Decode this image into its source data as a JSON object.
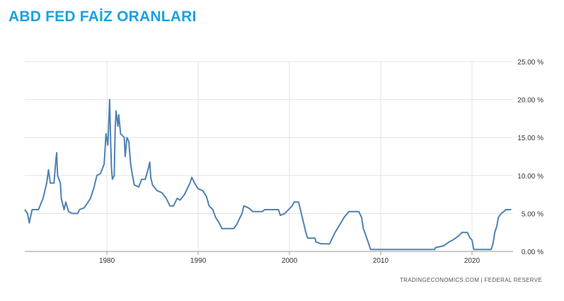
{
  "title": "ABD FED FAİZ ORANLARI",
  "source": "TRADINGECONOMICS.COM | FEDERAL RESERVE",
  "colors": {
    "title": "#1ba1e2",
    "line": "#4f81b4",
    "grid": "#e3e3e3",
    "axis": "#333333"
  },
  "chart_data": {
    "type": "line",
    "title": "ABD FED FAİZ ORANLARI",
    "xlabel": "",
    "ylabel": "",
    "x_ticks": [
      1980,
      1990,
      2000,
      2010,
      2020
    ],
    "y_ticks": [
      "0.00 %",
      "5.00 %",
      "10.00 %",
      "15.00 %",
      "20.00 %",
      "25.00 %"
    ],
    "xlim": [
      1971,
      2024.5
    ],
    "ylim": [
      0,
      25
    ],
    "grid": true,
    "y_axis_side": "right",
    "series": [
      {
        "values": [
          [
            1971.0,
            5.5
          ],
          [
            1971.3,
            5.0
          ],
          [
            1971.5,
            3.75
          ],
          [
            1971.8,
            5.5
          ],
          [
            1972.5,
            5.5
          ],
          [
            1973.0,
            7.0
          ],
          [
            1973.4,
            9.0
          ],
          [
            1973.6,
            10.75
          ],
          [
            1973.8,
            9.0
          ],
          [
            1974.2,
            9.0
          ],
          [
            1974.4,
            12.0
          ],
          [
            1974.5,
            13.0
          ],
          [
            1974.6,
            10.0
          ],
          [
            1974.9,
            9.0
          ],
          [
            1975.0,
            7.0
          ],
          [
            1975.3,
            5.5
          ],
          [
            1975.5,
            6.5
          ],
          [
            1975.8,
            5.25
          ],
          [
            1976.2,
            5.0
          ],
          [
            1976.8,
            5.0
          ],
          [
            1977.0,
            5.5
          ],
          [
            1977.5,
            5.75
          ],
          [
            1977.8,
            6.25
          ],
          [
            1978.2,
            7.0
          ],
          [
            1978.6,
            8.5
          ],
          [
            1978.9,
            10.0
          ],
          [
            1979.3,
            10.25
          ],
          [
            1979.7,
            11.5
          ],
          [
            1979.9,
            15.5
          ],
          [
            1980.1,
            14.0
          ],
          [
            1980.3,
            20.0
          ],
          [
            1980.4,
            15.0
          ],
          [
            1980.5,
            11.0
          ],
          [
            1980.6,
            9.5
          ],
          [
            1980.8,
            10.0
          ],
          [
            1980.9,
            16.0
          ],
          [
            1981.0,
            18.5
          ],
          [
            1981.2,
            16.5
          ],
          [
            1981.3,
            18.0
          ],
          [
            1981.5,
            15.5
          ],
          [
            1981.9,
            15.0
          ],
          [
            1982.0,
            12.5
          ],
          [
            1982.2,
            15.0
          ],
          [
            1982.4,
            14.5
          ],
          [
            1982.6,
            11.5
          ],
          [
            1982.8,
            10.0
          ],
          [
            1983.0,
            8.75
          ],
          [
            1983.5,
            8.5
          ],
          [
            1983.8,
            9.5
          ],
          [
            1984.2,
            9.5
          ],
          [
            1984.5,
            10.75
          ],
          [
            1984.7,
            11.75
          ],
          [
            1984.8,
            9.75
          ],
          [
            1985.0,
            8.75
          ],
          [
            1985.5,
            8.0
          ],
          [
            1986.0,
            7.75
          ],
          [
            1986.5,
            7.0
          ],
          [
            1986.9,
            6.0
          ],
          [
            1987.3,
            6.0
          ],
          [
            1987.7,
            7.0
          ],
          [
            1988.0,
            6.75
          ],
          [
            1988.5,
            7.5
          ],
          [
            1988.8,
            8.25
          ],
          [
            1989.1,
            9.0
          ],
          [
            1989.3,
            9.75
          ],
          [
            1989.6,
            9.0
          ],
          [
            1990.0,
            8.25
          ],
          [
            1990.5,
            8.0
          ],
          [
            1990.9,
            7.25
          ],
          [
            1991.2,
            6.0
          ],
          [
            1991.6,
            5.5
          ],
          [
            1991.9,
            4.5
          ],
          [
            1992.3,
            3.75
          ],
          [
            1992.6,
            3.0
          ],
          [
            1993.0,
            3.0
          ],
          [
            1993.9,
            3.0
          ],
          [
            1994.2,
            3.5
          ],
          [
            1994.5,
            4.25
          ],
          [
            1994.8,
            5.0
          ],
          [
            1995.0,
            6.0
          ],
          [
            1995.5,
            5.75
          ],
          [
            1996.0,
            5.25
          ],
          [
            1997.0,
            5.25
          ],
          [
            1997.3,
            5.5
          ],
          [
            1998.0,
            5.5
          ],
          [
            1998.8,
            5.5
          ],
          [
            1999.0,
            4.75
          ],
          [
            1999.5,
            5.0
          ],
          [
            1999.9,
            5.5
          ],
          [
            2000.3,
            6.0
          ],
          [
            2000.5,
            6.5
          ],
          [
            2001.0,
            6.5
          ],
          [
            2001.2,
            5.5
          ],
          [
            2001.5,
            4.0
          ],
          [
            2001.8,
            2.5
          ],
          [
            2002.0,
            1.75
          ],
          [
            2002.8,
            1.75
          ],
          [
            2002.9,
            1.25
          ],
          [
            2003.5,
            1.0
          ],
          [
            2004.4,
            1.0
          ],
          [
            2004.7,
            1.75
          ],
          [
            2005.0,
            2.5
          ],
          [
            2005.5,
            3.5
          ],
          [
            2006.0,
            4.5
          ],
          [
            2006.5,
            5.25
          ],
          [
            2007.6,
            5.25
          ],
          [
            2007.9,
            4.5
          ],
          [
            2008.1,
            3.0
          ],
          [
            2008.4,
            2.0
          ],
          [
            2008.9,
            0.25
          ],
          [
            2010.0,
            0.25
          ],
          [
            2012.0,
            0.25
          ],
          [
            2014.0,
            0.25
          ],
          [
            2015.9,
            0.25
          ],
          [
            2016.0,
            0.5
          ],
          [
            2016.9,
            0.75
          ],
          [
            2017.2,
            1.0
          ],
          [
            2017.5,
            1.25
          ],
          [
            2017.9,
            1.5
          ],
          [
            2018.2,
            1.75
          ],
          [
            2018.5,
            2.0
          ],
          [
            2018.7,
            2.25
          ],
          [
            2018.9,
            2.5
          ],
          [
            2019.5,
            2.5
          ],
          [
            2019.6,
            2.25
          ],
          [
            2019.8,
            1.75
          ],
          [
            2020.0,
            1.5
          ],
          [
            2020.2,
            0.25
          ],
          [
            2021.0,
            0.25
          ],
          [
            2022.1,
            0.25
          ],
          [
            2022.3,
            1.0
          ],
          [
            2022.5,
            2.5
          ],
          [
            2022.7,
            3.25
          ],
          [
            2022.9,
            4.5
          ],
          [
            2023.2,
            5.0
          ],
          [
            2023.5,
            5.25
          ],
          [
            2023.7,
            5.5
          ],
          [
            2024.3,
            5.5
          ]
        ]
      }
    ]
  }
}
